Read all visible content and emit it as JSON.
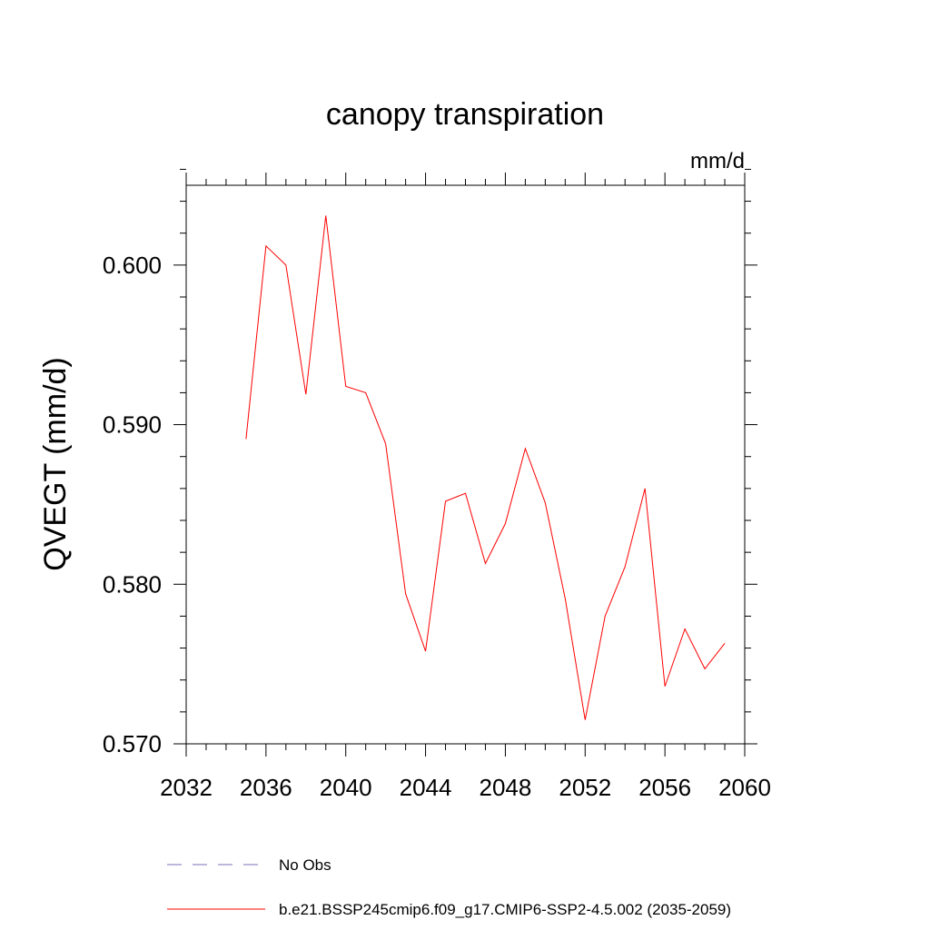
{
  "chart_data": {
    "type": "line",
    "title": "canopy transpiration",
    "units_label": "mm/d",
    "ylabel": "QVEGT  (mm/d)",
    "xlabel": "",
    "xlim": [
      2032,
      2060
    ],
    "ylim": [
      0.57,
      0.605
    ],
    "x_ticks": [
      "2032",
      "2036",
      "2040",
      "2044",
      "2048",
      "2052",
      "2056",
      "2060"
    ],
    "y_ticks": [
      "0.570",
      "0.580",
      "0.590",
      "0.600"
    ],
    "grid": false,
    "series": [
      {
        "name": "b.e21.BSSP245cmip6.f09_g17.CMIP6-SSP2-4.5.002 (2035-2059)",
        "color": "#ff0000",
        "style": "solid",
        "x": [
          2035,
          2036,
          2037,
          2038,
          2039,
          2040,
          2041,
          2042,
          2043,
          2044,
          2045,
          2046,
          2047,
          2048,
          2049,
          2050,
          2051,
          2052,
          2053,
          2054,
          2055,
          2056,
          2057,
          2058,
          2059
        ],
        "y": [
          0.5891,
          0.6012,
          0.6,
          0.5919,
          0.6031,
          0.5924,
          0.592,
          0.5888,
          0.5794,
          0.5758,
          0.5852,
          0.5857,
          0.5813,
          0.5838,
          0.5885,
          0.5851,
          0.5791,
          0.5715,
          0.578,
          0.5811,
          0.586,
          0.5736,
          0.5772,
          0.5747,
          0.5763
        ]
      }
    ],
    "legend": {
      "placement": "bottom",
      "entries": [
        {
          "label": "No Obs",
          "color": "#7b6fb8",
          "style": "dashed"
        },
        {
          "label": "b.e21.BSSP245cmip6.f09_g17.CMIP6-SSP2-4.5.002 (2035-2059)",
          "color": "#ff0000",
          "style": "solid"
        }
      ]
    }
  }
}
